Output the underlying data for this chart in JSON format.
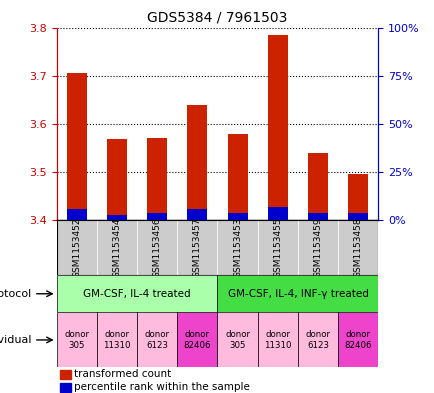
{
  "title": "GDS5384 / 7961503",
  "samples": [
    "GSM1153452",
    "GSM1153454",
    "GSM1153456",
    "GSM1153457",
    "GSM1153453",
    "GSM1153455",
    "GSM1153459",
    "GSM1153458"
  ],
  "red_values": [
    3.705,
    3.568,
    3.57,
    3.64,
    3.578,
    3.785,
    3.54,
    3.495
  ],
  "blue_values": [
    3.424,
    3.41,
    3.415,
    3.422,
    3.415,
    3.428,
    3.415,
    3.415
  ],
  "bar_base": 3.4,
  "ylim_left": [
    3.4,
    3.8
  ],
  "ylim_right": [
    0,
    100
  ],
  "yticks_left": [
    3.4,
    3.5,
    3.6,
    3.7,
    3.8
  ],
  "yticks_right": [
    0,
    25,
    50,
    75,
    100
  ],
  "left_color": "#cc0000",
  "right_color": "#0000cc",
  "blue_bar_color": "#0000cc",
  "red_bar_color": "#cc2200",
  "protocol1": "GM-CSF, IL-4 treated",
  "protocol2": "GM-CSF, IL-4, INF-γ treated",
  "group1_indices": [
    0,
    1,
    2,
    3
  ],
  "group2_indices": [
    4,
    5,
    6,
    7
  ],
  "donors": [
    "donor\n305",
    "donor\n11310",
    "donor\n6123",
    "donor\n82406",
    "donor\n305",
    "donor\n11310",
    "donor\n6123",
    "donor\n82406"
  ],
  "donor_colors": [
    "#ffbbdd",
    "#ffbbdd",
    "#ffbbdd",
    "#ee44cc",
    "#ffbbdd",
    "#ffbbdd",
    "#ffbbdd",
    "#ee44cc"
  ],
  "protocol_color1": "#aaffaa",
  "protocol_color2": "#44dd44",
  "sample_bg_color": "#cccccc",
  "legend_red": "transformed count",
  "legend_blue": "percentile rank within the sample",
  "bar_width": 0.5
}
